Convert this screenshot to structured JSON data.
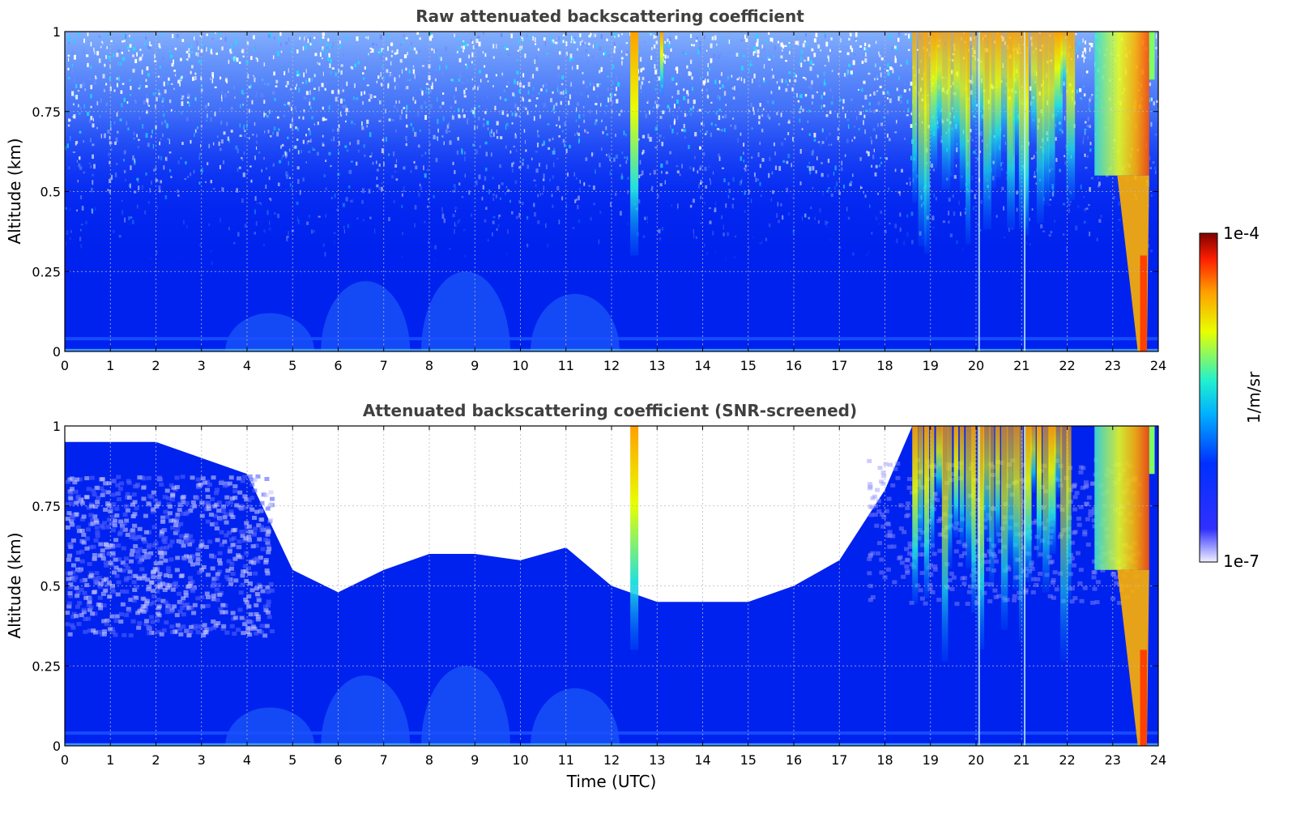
{
  "chart_data": [
    {
      "type": "heatmap",
      "title": "Raw attenuated backscattering coefficient",
      "xlabel": "",
      "ylabel": "Altitude (km)",
      "xlim": [
        0,
        24
      ],
      "ylim": [
        0,
        1
      ],
      "x_ticks": [
        "0",
        "1",
        "2",
        "3",
        "4",
        "5",
        "6",
        "7",
        "8",
        "9",
        "10",
        "11",
        "12",
        "13",
        "14",
        "15",
        "16",
        "17",
        "18",
        "19",
        "20",
        "21",
        "22",
        "23",
        "24"
      ],
      "y_ticks": [
        "0",
        "0.25",
        "0.5",
        "0.75",
        "1"
      ],
      "grid": true,
      "colorscale": "jet",
      "screened": false,
      "features": [
        {
          "time_utc": 12.5,
          "altitude_km": [
            0.3,
            1.0
          ],
          "level": "high"
        },
        {
          "time_utc": 13.1,
          "altitude_km": [
            0.8,
            1.0
          ],
          "level": "medium"
        },
        {
          "time_utc": [
            18.6,
            22.0
          ],
          "altitude_km": [
            0.25,
            1.0
          ],
          "level": "high"
        },
        {
          "time_utc": [
            22.6,
            23.8
          ],
          "altitude_km": [
            0.0,
            1.0
          ],
          "level": "very high"
        }
      ]
    },
    {
      "type": "heatmap",
      "title": "Attenuated backscattering coefficient (SNR-screened)",
      "xlabel": "Time (UTC)",
      "ylabel": "Altitude (km)",
      "xlim": [
        0,
        24
      ],
      "ylim": [
        0,
        1
      ],
      "x_ticks": [
        "0",
        "1",
        "2",
        "3",
        "4",
        "5",
        "6",
        "7",
        "8",
        "9",
        "10",
        "11",
        "12",
        "13",
        "14",
        "15",
        "16",
        "17",
        "18",
        "19",
        "20",
        "21",
        "22",
        "23",
        "24"
      ],
      "y_ticks": [
        "0",
        "0.25",
        "0.5",
        "0.75",
        "1"
      ],
      "grid": true,
      "colorscale": "jet",
      "screened": true,
      "screened_top_km": [
        [
          0,
          0.95
        ],
        [
          1,
          0.95
        ],
        [
          2,
          0.95
        ],
        [
          3,
          0.9
        ],
        [
          4,
          0.85
        ],
        [
          5,
          0.55
        ],
        [
          6,
          0.48
        ],
        [
          7,
          0.55
        ],
        [
          8,
          0.6
        ],
        [
          9,
          0.6
        ],
        [
          10,
          0.58
        ],
        [
          11,
          0.62
        ],
        [
          12,
          0.5
        ],
        [
          13,
          0.45
        ],
        [
          14,
          0.45
        ],
        [
          15,
          0.45
        ],
        [
          16,
          0.5
        ],
        [
          17,
          0.58
        ],
        [
          18,
          0.8
        ],
        [
          18.6,
          1.0
        ],
        [
          24,
          1.0
        ]
      ],
      "features": [
        {
          "time_utc": 12.5,
          "altitude_km": [
            0.3,
            1.0
          ],
          "level": "high"
        },
        {
          "time_utc": [
            18.6,
            22.0
          ],
          "altitude_km": [
            0.25,
            1.0
          ],
          "level": "high"
        },
        {
          "time_utc": [
            22.6,
            23.8
          ],
          "altitude_km": [
            0.0,
            1.0
          ],
          "level": "very high"
        }
      ]
    }
  ],
  "colorbar": {
    "min_label": "1e-7",
    "max_label": "1e-4",
    "unit_label": "1/m/sr",
    "colors": [
      "#f0f0ff",
      "#0000ff",
      "#00ffff",
      "#ffff00",
      "#ff0000",
      "#800000"
    ]
  },
  "colors": {
    "background": "#0022ee",
    "surface_layer": "#1a50ff",
    "grid": "#bbbbbb",
    "title_text": "#404040"
  }
}
